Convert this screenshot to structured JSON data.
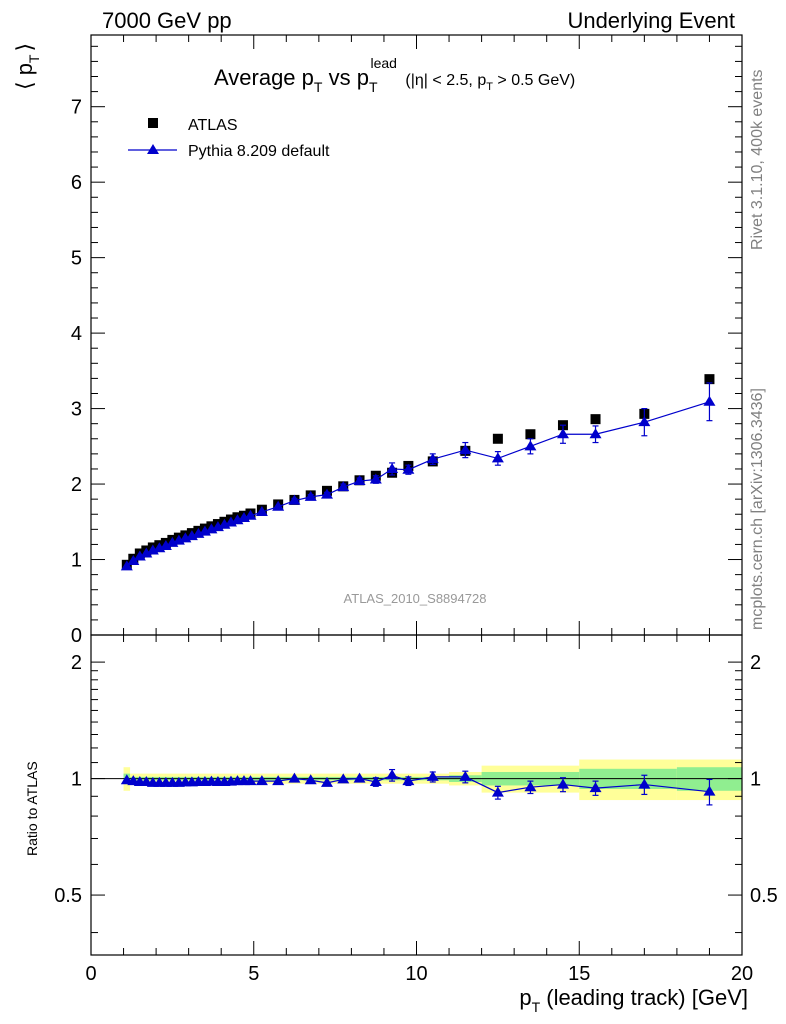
{
  "header": {
    "left": "7000 GeV pp",
    "right": "Underlying Event"
  },
  "side_labels": {
    "rivet": "Rivet 3.1.10,  400k events",
    "mcplots": "mcplots.cern.ch [arXiv:1306.3436]"
  },
  "chart_data": [
    {
      "type": "scatter",
      "panel": "main",
      "title_parts": {
        "main": "Average p",
        "sub1": "T",
        "mid": " vs p",
        "sub2": "T",
        "sup": "lead",
        "cut_a": " (|η| < 2.5, p",
        "cut_sub": "T",
        "cut_b": " > 0.5 GeV)"
      },
      "ylabel_parts": {
        "left": "⟨ p",
        "sub": "T",
        "right": "⟩"
      },
      "watermark": "ATLAS_2010_S8894728",
      "xlim": [
        0,
        20
      ],
      "ylim": [
        0,
        7.95
      ],
      "yticks": [
        0,
        1,
        2,
        3,
        4,
        5,
        6,
        7
      ],
      "ytick_labels": [
        "0",
        "1",
        "2",
        "3",
        "4",
        "5",
        "6",
        "7"
      ],
      "legend_position": "top-left",
      "series": [
        {
          "name": "ATLAS",
          "marker": "square",
          "color": "#000000",
          "x": [
            1.1,
            1.3,
            1.5,
            1.7,
            1.9,
            2.1,
            2.3,
            2.5,
            2.7,
            2.9,
            3.1,
            3.3,
            3.5,
            3.7,
            3.9,
            4.1,
            4.3,
            4.5,
            4.7,
            4.9,
            5.25,
            5.75,
            6.25,
            6.75,
            7.25,
            7.75,
            8.25,
            8.75,
            9.25,
            9.75,
            10.5,
            11.5,
            12.5,
            13.5,
            14.5,
            15.5,
            17.0,
            19.0
          ],
          "y": [
            0.93,
            1.01,
            1.08,
            1.12,
            1.16,
            1.19,
            1.22,
            1.26,
            1.29,
            1.32,
            1.35,
            1.38,
            1.41,
            1.44,
            1.47,
            1.5,
            1.53,
            1.56,
            1.58,
            1.61,
            1.66,
            1.73,
            1.79,
            1.85,
            1.91,
            1.97,
            2.05,
            2.11,
            2.15,
            2.24,
            2.3,
            2.44,
            2.6,
            2.66,
            2.78,
            2.86,
            2.93,
            3.39
          ]
        },
        {
          "name": "Pythia 8.209 default",
          "marker": "triangle",
          "color": "#0000cc",
          "x": [
            1.1,
            1.3,
            1.5,
            1.7,
            1.9,
            2.1,
            2.3,
            2.5,
            2.7,
            2.9,
            3.1,
            3.3,
            3.5,
            3.7,
            3.9,
            4.1,
            4.3,
            4.5,
            4.7,
            4.9,
            5.25,
            5.75,
            6.25,
            6.75,
            7.25,
            7.75,
            8.25,
            8.75,
            9.25,
            9.75,
            10.5,
            11.5,
            12.5,
            13.5,
            14.5,
            15.5,
            17.0,
            19.0
          ],
          "y": [
            0.91,
            0.98,
            1.04,
            1.08,
            1.12,
            1.15,
            1.18,
            1.22,
            1.25,
            1.28,
            1.31,
            1.34,
            1.37,
            1.4,
            1.43,
            1.46,
            1.49,
            1.52,
            1.55,
            1.58,
            1.63,
            1.7,
            1.78,
            1.83,
            1.86,
            1.96,
            2.04,
            2.06,
            2.2,
            2.19,
            2.33,
            2.45,
            2.34,
            2.5,
            2.66,
            2.66,
            2.82,
            3.09
          ],
          "yerr": [
            0.01,
            0.01,
            0.01,
            0.01,
            0.01,
            0.01,
            0.01,
            0.01,
            0.01,
            0.01,
            0.01,
            0.01,
            0.01,
            0.01,
            0.01,
            0.01,
            0.01,
            0.01,
            0.02,
            0.02,
            0.02,
            0.02,
            0.03,
            0.03,
            0.03,
            0.04,
            0.04,
            0.05,
            0.08,
            0.06,
            0.07,
            0.1,
            0.09,
            0.1,
            0.12,
            0.11,
            0.18,
            0.25
          ]
        }
      ]
    },
    {
      "type": "scatter",
      "panel": "ratio",
      "ylabel": "Ratio to ATLAS",
      "xlabel_parts": {
        "left": "p",
        "sub": "T",
        "right": " (leading track) [GeV]"
      },
      "xlim": [
        0,
        20
      ],
      "ylim": [
        0.35,
        2.35
      ],
      "log_y": true,
      "xticks": [
        0,
        5,
        10,
        15,
        20
      ],
      "xtick_labels": [
        "0",
        "5",
        "10",
        "15",
        "20"
      ],
      "yticks": [
        0.5,
        1,
        2
      ],
      "ytick_labels": [
        "0.5",
        "1",
        "2"
      ],
      "bands": {
        "edges": [
          1.0,
          1.2,
          11.0,
          12.0,
          15.0,
          18.0,
          20.0
        ],
        "green_half": [
          0.03,
          0.01,
          0.02,
          0.04,
          0.06,
          0.07
        ],
        "yellow_half": [
          0.07,
          0.03,
          0.04,
          0.08,
          0.12,
          0.12
        ],
        "green_color": "#90ee90",
        "yellow_color": "#ffff99"
      },
      "series": [
        {
          "name": "Pythia 8.209 default",
          "marker": "triangle",
          "color": "#0000cc",
          "x": [
            1.1,
            1.3,
            1.5,
            1.7,
            1.9,
            2.1,
            2.3,
            2.5,
            2.7,
            2.9,
            3.1,
            3.3,
            3.5,
            3.7,
            3.9,
            4.1,
            4.3,
            4.5,
            4.7,
            4.9,
            5.25,
            5.75,
            6.25,
            6.75,
            7.25,
            7.75,
            8.25,
            8.75,
            9.25,
            9.75,
            10.5,
            11.5,
            12.5,
            13.5,
            14.5,
            15.5,
            17.0,
            19.0
          ],
          "y": [
            0.99,
            0.985,
            0.98,
            0.98,
            0.975,
            0.975,
            0.975,
            0.975,
            0.975,
            0.978,
            0.978,
            0.98,
            0.98,
            0.982,
            0.98,
            0.98,
            0.982,
            0.985,
            0.985,
            0.985,
            0.985,
            0.985,
            1.0,
            0.99,
            0.975,
            0.995,
            1.0,
            0.98,
            1.02,
            0.985,
            1.01,
            1.01,
            0.92,
            0.95,
            0.965,
            0.945,
            0.965,
            0.925
          ],
          "yerr": [
            0.01,
            0.01,
            0.01,
            0.01,
            0.01,
            0.01,
            0.01,
            0.01,
            0.01,
            0.01,
            0.01,
            0.01,
            0.01,
            0.01,
            0.01,
            0.01,
            0.01,
            0.01,
            0.01,
            0.01,
            0.01,
            0.01,
            0.012,
            0.012,
            0.015,
            0.015,
            0.02,
            0.025,
            0.035,
            0.025,
            0.03,
            0.035,
            0.035,
            0.035,
            0.04,
            0.04,
            0.055,
            0.07
          ]
        }
      ]
    }
  ]
}
